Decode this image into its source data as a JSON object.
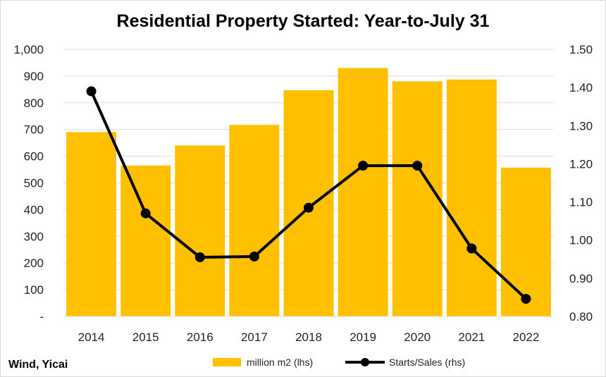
{
  "chart_data": {
    "type": "bar",
    "title": "Residential Property Started: Year-to-July 31",
    "categories": [
      "2014",
      "2015",
      "2016",
      "2017",
      "2018",
      "2019",
      "2020",
      "2021",
      "2022"
    ],
    "series": [
      {
        "name": "million m2 (lhs)",
        "type": "bar",
        "axis": "left",
        "color": "#FFC000",
        "values": [
          690,
          565,
          640,
          717,
          847,
          930,
          880,
          887,
          557
        ]
      },
      {
        "name": "Starts/Sales (rhs)",
        "type": "line",
        "axis": "right",
        "color": "#000000",
        "values": [
          1.39,
          1.07,
          0.955,
          0.957,
          1.085,
          1.195,
          1.195,
          0.978,
          0.846
        ]
      }
    ],
    "y_left": {
      "min": 0,
      "max": 1000,
      "ticks": [
        0,
        100,
        200,
        300,
        400,
        500,
        600,
        700,
        800,
        900,
        1000
      ],
      "tick_labels": [
        "-",
        "100",
        "200",
        "300",
        "400",
        "500",
        "600",
        "700",
        "800",
        "900",
        "1,000"
      ]
    },
    "y_right": {
      "min": 0.8,
      "max": 1.5,
      "ticks": [
        0.8,
        0.9,
        1.0,
        1.1,
        1.2,
        1.3,
        1.4,
        1.5
      ],
      "tick_labels": [
        "0.80",
        "0.90",
        "1.00",
        "1.10",
        "1.20",
        "1.30",
        "1.40",
        "1.50"
      ]
    },
    "grid": true,
    "legend": "bottom",
    "source": "Wind, Yicai"
  }
}
